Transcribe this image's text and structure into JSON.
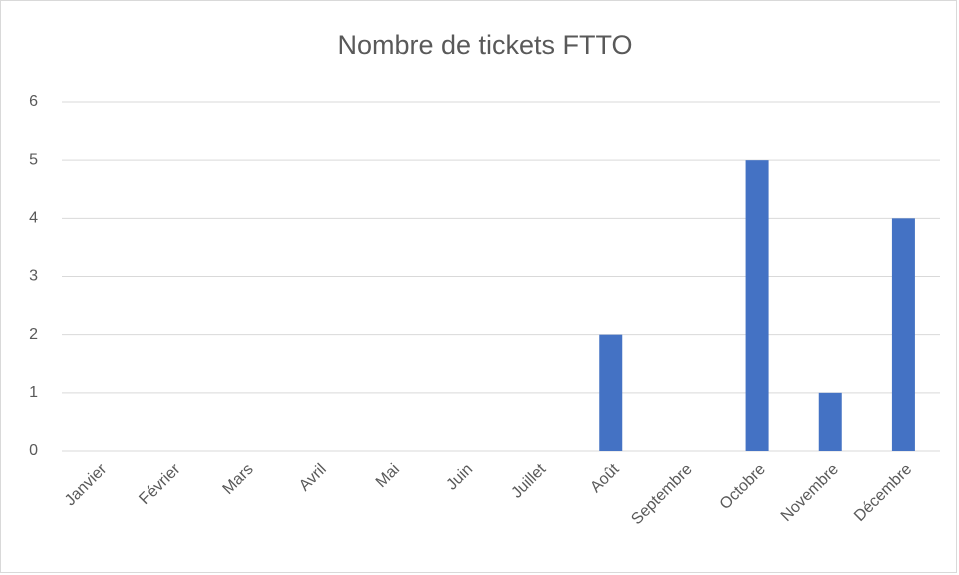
{
  "chart_data": {
    "type": "bar",
    "title": "Nombre de tickets FTTO",
    "categories": [
      "Janvier",
      "Février",
      "Mars",
      "Avril",
      "Mai",
      "Juin",
      "Juillet",
      "Août",
      "Septembre",
      "Octobre",
      "Novembre",
      "Décembre"
    ],
    "values": [
      0,
      0,
      0,
      0,
      0,
      0,
      0,
      2,
      0,
      5,
      1,
      4
    ],
    "color": "#4472c4",
    "ylim": [
      0,
      6
    ],
    "yticks": [
      0,
      1,
      2,
      3,
      4,
      5,
      6
    ],
    "grid": true
  }
}
